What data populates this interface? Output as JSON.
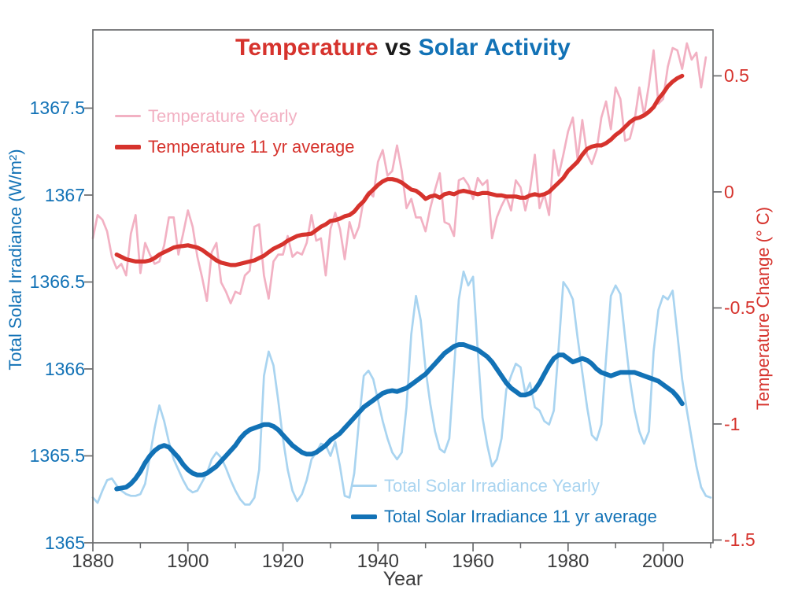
{
  "title": {
    "part1": "Temperature",
    "part2": " vs ",
    "part3": "Solar Activity"
  },
  "colors": {
    "red": "#d6332d",
    "pink": "#f2b1c3",
    "blue": "#1272b6",
    "light_blue": "#a9d4f0",
    "frame": "#6a6b6d",
    "x_tick_text": "#3c3c3d",
    "title_vs": "#1a1a1a"
  },
  "axes": {
    "x": {
      "label": "Year",
      "min": 1880,
      "max": 2010.5,
      "major_ticks": [
        {
          "value": 1880,
          "label": "1880"
        },
        {
          "value": 1900,
          "label": "1900"
        },
        {
          "value": 1920,
          "label": "1920"
        },
        {
          "value": 1940,
          "label": "1940"
        },
        {
          "value": 1960,
          "label": "1960"
        },
        {
          "value": 1980,
          "label": "1980"
        },
        {
          "value": 2000,
          "label": "2000"
        }
      ],
      "minor_ticks": [
        1890,
        1910,
        1930,
        1950,
        1970,
        1990,
        2010
      ]
    },
    "y_left": {
      "label": "Total Solar Irradiance (W/m²)",
      "min": 1365,
      "max": 1367.95,
      "color_key": "blue",
      "ticks": [
        {
          "value": 1367.5,
          "label": "1367.5"
        },
        {
          "value": 1367,
          "label": "1367"
        },
        {
          "value": 1366.5,
          "label": "1366.5"
        },
        {
          "value": 1366,
          "label": "1366"
        },
        {
          "value": 1365.5,
          "label": "1365.5"
        },
        {
          "value": 1365,
          "label": "1365"
        }
      ]
    },
    "y_right": {
      "label": "Temperature Change (° C)",
      "min": -1.512,
      "max": 0.698,
      "color_key": "red",
      "ticks": [
        {
          "value": 0.5,
          "label": "0.5"
        },
        {
          "value": 0,
          "label": "0"
        },
        {
          "value": -0.5,
          "label": "-0.5"
        },
        {
          "value": -1,
          "label": "-1"
        },
        {
          "value": -1.5,
          "label": "-1.5"
        }
      ]
    }
  },
  "legend_top": {
    "items": [
      {
        "label": "Temperature Yearly",
        "color_key": "pink",
        "thick": false
      },
      {
        "label": "Temperature 11 yr average",
        "color_key": "red",
        "thick": true
      }
    ]
  },
  "legend_bottom": {
    "items": [
      {
        "label": "Total Solar Irradiance Yearly",
        "color_key": "light_blue",
        "thick": false
      },
      {
        "label": "Total Solar Irradiance 11 yr average",
        "color_key": "blue",
        "thick": true
      }
    ]
  },
  "chart_data": {
    "type": "line",
    "title": "Temperature vs Solar Activity",
    "xlabel": "Year",
    "ylabel_left": "Total Solar Irradiance (W/m²)",
    "ylabel_right": "Temperature Change (° C)",
    "xlim": [
      1880,
      2010.5
    ],
    "ylim_left": [
      1365,
      1367.95
    ],
    "ylim_right": [
      -1.512,
      0.698
    ],
    "grid": false,
    "series": [
      {
        "name": "Total Solar Irradiance Yearly",
        "slug": "tsi-yearly",
        "axis": "left",
        "role": "yearly",
        "color_key": "light_blue",
        "start_year": 1880,
        "step": 1,
        "values": [
          1365.26,
          1365.23,
          1365.3,
          1365.36,
          1365.37,
          1365.33,
          1365.3,
          1365.28,
          1365.27,
          1365.27,
          1365.28,
          1365.34,
          1365.5,
          1365.66,
          1365.79,
          1365.7,
          1365.58,
          1365.48,
          1365.42,
          1365.36,
          1365.31,
          1365.29,
          1365.3,
          1365.35,
          1365.4,
          1365.48,
          1365.52,
          1365.49,
          1365.43,
          1365.36,
          1365.3,
          1365.25,
          1365.22,
          1365.22,
          1365.26,
          1365.42,
          1365.96,
          1366.1,
          1366.02,
          1365.82,
          1365.6,
          1365.42,
          1365.3,
          1365.24,
          1365.28,
          1365.36,
          1365.48,
          1365.52,
          1365.57,
          1365.56,
          1365.5,
          1365.58,
          1365.44,
          1365.27,
          1365.26,
          1365.4,
          1365.7,
          1365.96,
          1365.99,
          1365.94,
          1365.82,
          1365.7,
          1365.6,
          1365.52,
          1365.48,
          1365.52,
          1365.78,
          1366.2,
          1366.42,
          1366.28,
          1366.0,
          1365.8,
          1365.64,
          1365.54,
          1365.52,
          1365.6,
          1366.0,
          1366.4,
          1366.56,
          1366.48,
          1366.53,
          1366.1,
          1365.72,
          1365.56,
          1365.44,
          1365.48,
          1365.6,
          1365.88,
          1365.96,
          1366.03,
          1366.01,
          1365.86,
          1365.92,
          1365.78,
          1365.76,
          1365.7,
          1365.68,
          1365.76,
          1366.12,
          1366.5,
          1366.46,
          1366.4,
          1366.18,
          1365.98,
          1365.78,
          1365.62,
          1365.59,
          1365.68,
          1366.06,
          1366.42,
          1366.48,
          1366.43,
          1366.18,
          1365.94,
          1365.76,
          1365.64,
          1365.57,
          1365.64,
          1366.1,
          1366.34,
          1366.42,
          1366.4,
          1366.45,
          1366.2,
          1365.94,
          1365.76,
          1365.6,
          1365.44,
          1365.32,
          1365.27,
          1365.26
        ]
      },
      {
        "name": "Temperature Yearly",
        "slug": "temperature-yearly",
        "axis": "right",
        "role": "yearly",
        "color_key": "pink",
        "start_year": 1880,
        "step": 1,
        "values": [
          -0.2,
          -0.1,
          -0.12,
          -0.17,
          -0.28,
          -0.33,
          -0.31,
          -0.36,
          -0.18,
          -0.1,
          -0.35,
          -0.22,
          -0.27,
          -0.31,
          -0.3,
          -0.23,
          -0.11,
          -0.11,
          -0.27,
          -0.18,
          -0.08,
          -0.15,
          -0.28,
          -0.37,
          -0.47,
          -0.26,
          -0.22,
          -0.39,
          -0.43,
          -0.48,
          -0.43,
          -0.44,
          -0.36,
          -0.34,
          -0.15,
          -0.14,
          -0.36,
          -0.46,
          -0.3,
          -0.27,
          -0.27,
          -0.19,
          -0.28,
          -0.26,
          -0.27,
          -0.22,
          -0.1,
          -0.21,
          -0.2,
          -0.36,
          -0.16,
          -0.09,
          -0.16,
          -0.29,
          -0.13,
          -0.2,
          -0.15,
          -0.03,
          0.0,
          -0.02,
          0.13,
          0.18,
          0.07,
          0.09,
          0.2,
          0.09,
          -0.07,
          -0.03,
          -0.11,
          -0.11,
          -0.17,
          -0.07,
          0.01,
          0.08,
          -0.13,
          -0.14,
          -0.19,
          0.05,
          0.06,
          0.03,
          -0.03,
          0.06,
          0.03,
          0.05,
          -0.2,
          -0.11,
          -0.06,
          -0.02,
          -0.08,
          0.05,
          0.02,
          -0.08,
          0.01,
          0.16,
          -0.07,
          -0.01,
          -0.1,
          0.18,
          0.07,
          0.16,
          0.26,
          0.32,
          0.14,
          0.31,
          0.16,
          0.12,
          0.18,
          0.32,
          0.39,
          0.27,
          0.45,
          0.4,
          0.22,
          0.23,
          0.31,
          0.45,
          0.33,
          0.46,
          0.61,
          0.38,
          0.4,
          0.54,
          0.62,
          0.61,
          0.53,
          0.64,
          0.57,
          0.6,
          0.45,
          0.58
        ]
      },
      {
        "name": "Total Solar Irradiance 11 yr average",
        "slug": "tsi-11yr-average",
        "axis": "left",
        "role": "average",
        "color_key": "blue",
        "start_year": 1885,
        "step": 1,
        "values": [
          1365.31,
          1365.315,
          1365.32,
          1365.34,
          1365.37,
          1365.41,
          1365.46,
          1365.5,
          1365.53,
          1365.55,
          1365.56,
          1365.55,
          1365.52,
          1365.49,
          1365.45,
          1365.42,
          1365.4,
          1365.39,
          1365.39,
          1365.4,
          1365.42,
          1365.44,
          1365.47,
          1365.5,
          1365.53,
          1365.56,
          1365.6,
          1365.63,
          1365.65,
          1365.66,
          1365.67,
          1365.68,
          1365.68,
          1365.67,
          1365.65,
          1365.62,
          1365.59,
          1365.56,
          1365.54,
          1365.52,
          1365.51,
          1365.51,
          1365.52,
          1365.54,
          1365.56,
          1365.59,
          1365.61,
          1365.63,
          1365.66,
          1365.69,
          1365.72,
          1365.75,
          1365.78,
          1365.8,
          1365.82,
          1365.84,
          1365.86,
          1365.87,
          1365.875,
          1365.87,
          1365.88,
          1365.89,
          1365.91,
          1365.93,
          1365.95,
          1365.97,
          1366.0,
          1366.03,
          1366.06,
          1366.09,
          1366.11,
          1366.13,
          1366.14,
          1366.14,
          1366.13,
          1366.12,
          1366.11,
          1366.09,
          1366.07,
          1366.04,
          1366.0,
          1365.96,
          1365.92,
          1365.89,
          1365.87,
          1365.85,
          1365.85,
          1365.86,
          1365.88,
          1365.92,
          1365.97,
          1366.02,
          1366.06,
          1366.08,
          1366.08,
          1366.06,
          1366.04,
          1366.05,
          1366.06,
          1366.05,
          1366.03,
          1366.0,
          1365.98,
          1365.97,
          1365.96,
          1365.97,
          1365.98,
          1365.98,
          1365.98,
          1365.98,
          1365.97,
          1365.96,
          1365.95,
          1365.94,
          1365.93,
          1365.91,
          1365.89,
          1365.87,
          1365.84,
          1365.8
        ]
      },
      {
        "name": "Temperature 11 yr average",
        "slug": "temperature-11yr-average",
        "axis": "right",
        "role": "average",
        "color_key": "red",
        "start_year": 1885,
        "step": 1,
        "values": [
          -0.27,
          -0.28,
          -0.29,
          -0.295,
          -0.3,
          -0.3,
          -0.3,
          -0.295,
          -0.285,
          -0.27,
          -0.26,
          -0.25,
          -0.24,
          -0.235,
          -0.233,
          -0.23,
          -0.235,
          -0.24,
          -0.25,
          -0.265,
          -0.28,
          -0.295,
          -0.305,
          -0.31,
          -0.315,
          -0.315,
          -0.31,
          -0.305,
          -0.3,
          -0.295,
          -0.285,
          -0.275,
          -0.26,
          -0.245,
          -0.235,
          -0.225,
          -0.21,
          -0.2,
          -0.19,
          -0.185,
          -0.183,
          -0.18,
          -0.165,
          -0.15,
          -0.14,
          -0.125,
          -0.122,
          -0.115,
          -0.105,
          -0.1,
          -0.085,
          -0.06,
          -0.04,
          -0.01,
          0.01,
          0.03,
          0.045,
          0.055,
          0.055,
          0.05,
          0.04,
          0.025,
          0.01,
          0.005,
          -0.01,
          -0.03,
          -0.02,
          -0.015,
          -0.025,
          -0.01,
          -0.005,
          -0.01,
          0.0,
          0.005,
          0.0,
          -0.005,
          -0.01,
          -0.005,
          -0.005,
          -0.01,
          -0.015,
          -0.015,
          -0.02,
          -0.02,
          -0.02,
          -0.025,
          -0.025,
          -0.015,
          -0.01,
          -0.015,
          -0.01,
          0.0,
          0.02,
          0.04,
          0.06,
          0.09,
          0.11,
          0.13,
          0.16,
          0.185,
          0.195,
          0.2,
          0.2,
          0.21,
          0.225,
          0.245,
          0.26,
          0.28,
          0.3,
          0.315,
          0.32,
          0.33,
          0.345,
          0.365,
          0.4,
          0.425,
          0.455,
          0.475,
          0.49,
          0.5
        ]
      }
    ]
  }
}
